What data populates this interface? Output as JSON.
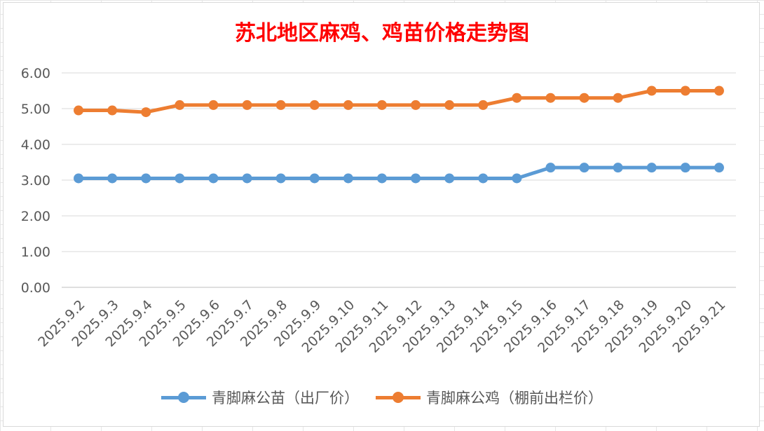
{
  "chart_data": {
    "type": "line",
    "title": "苏北地区麻鸡、鸡苗价格走势图",
    "categories": [
      "2025.9.2",
      "2025.9.3",
      "2025.9.4",
      "2025.9.5",
      "2025.9.6",
      "2025.9.7",
      "2025.9.8",
      "2025.9.9",
      "2025.9.10",
      "2025.9.11",
      "2025.9.12",
      "2025.9.13",
      "2025.9.14",
      "2025.9.15",
      "2025.9.16",
      "2025.9.17",
      "2025.9.18",
      "2025.9.19",
      "2025.9.20",
      "2025.9.21"
    ],
    "series": [
      {
        "name": "青脚麻公苗（出厂价）",
        "color": "#5b9bd5",
        "values": [
          3.05,
          3.05,
          3.05,
          3.05,
          3.05,
          3.05,
          3.05,
          3.05,
          3.05,
          3.05,
          3.05,
          3.05,
          3.05,
          3.05,
          3.35,
          3.35,
          3.35,
          3.35,
          3.35,
          3.35
        ]
      },
      {
        "name": "青脚麻公鸡（棚前出栏价）",
        "color": "#ed7d31",
        "values": [
          4.95,
          4.95,
          4.9,
          5.1,
          5.1,
          5.1,
          5.1,
          5.1,
          5.1,
          5.1,
          5.1,
          5.1,
          5.1,
          5.3,
          5.3,
          5.3,
          5.3,
          5.5,
          5.5,
          5.5
        ]
      }
    ],
    "yticks": [
      "0.00",
      "1.00",
      "2.00",
      "3.00",
      "4.00",
      "5.00",
      "6.00"
    ],
    "ylim": [
      0,
      6
    ],
    "grid": true,
    "legend_position": "bottom"
  }
}
